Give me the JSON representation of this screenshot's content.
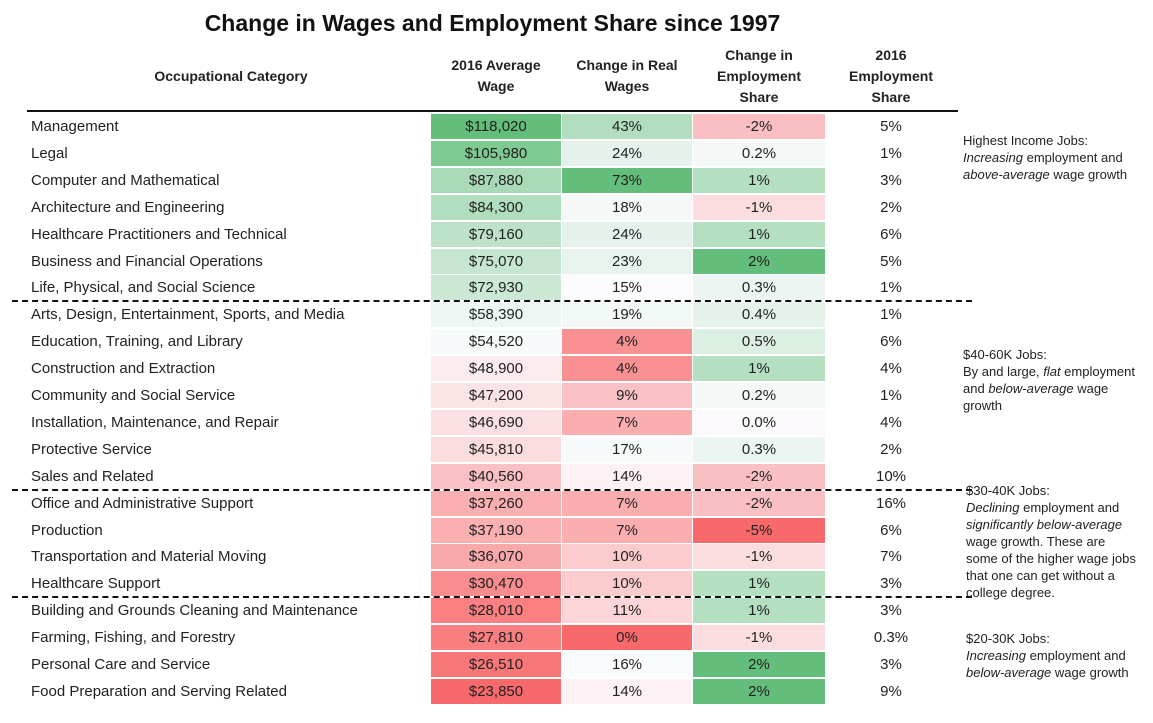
{
  "chart_data": {
    "type": "table",
    "title": "Change in Wages and Employment Share since 1997",
    "columns": {
      "category": "Occupational Category",
      "wage": "2016 Average\nWage",
      "real": "Change in Real\nWages",
      "emp": "Change in\nEmployment\nShare",
      "share": "2016\nEmployment\nShare"
    },
    "rows": [
      {
        "category": "Management",
        "wage": "$118,020",
        "wage_value": 118020,
        "real": "43%",
        "real_value": 43,
        "emp": "-2%",
        "emp_value": -2,
        "share": "5%"
      },
      {
        "category": "Legal",
        "wage": "$105,980",
        "wage_value": 105980,
        "real": "24%",
        "real_value": 24,
        "emp": "0.2%",
        "emp_value": 0.2,
        "share": "1%"
      },
      {
        "category": "Computer and Mathematical",
        "wage": "$87,880",
        "wage_value": 87880,
        "real": "73%",
        "real_value": 73,
        "emp": "1%",
        "emp_value": 1,
        "share": "3%"
      },
      {
        "category": "Architecture and Engineering",
        "wage": "$84,300",
        "wage_value": 84300,
        "real": "18%",
        "real_value": 18,
        "emp": "-1%",
        "emp_value": -1,
        "share": "2%"
      },
      {
        "category": "Healthcare Practitioners and Technical",
        "wage": "$79,160",
        "wage_value": 79160,
        "real": "24%",
        "real_value": 24,
        "emp": "1%",
        "emp_value": 1,
        "share": "6%"
      },
      {
        "category": "Business and Financial Operations",
        "wage": "$75,070",
        "wage_value": 75070,
        "real": "23%",
        "real_value": 23,
        "emp": "2%",
        "emp_value": 2,
        "share": "5%"
      },
      {
        "category": "Life, Physical, and Social Science",
        "wage": "$72,930",
        "wage_value": 72930,
        "real": "15%",
        "real_value": 15,
        "emp": "0.3%",
        "emp_value": 0.3,
        "share": "1%"
      },
      {
        "category": "Arts, Design, Entertainment, Sports, and Media",
        "wage": "$58,390",
        "wage_value": 58390,
        "real": "19%",
        "real_value": 19,
        "emp": "0.4%",
        "emp_value": 0.4,
        "share": "1%"
      },
      {
        "category": "Education, Training, and Library",
        "wage": "$54,520",
        "wage_value": 54520,
        "real": "4%",
        "real_value": 4,
        "emp": "0.5%",
        "emp_value": 0.5,
        "share": "6%"
      },
      {
        "category": "Construction and Extraction",
        "wage": "$48,900",
        "wage_value": 48900,
        "real": "4%",
        "real_value": 4,
        "emp": "1%",
        "emp_value": 1,
        "share": "4%"
      },
      {
        "category": "Community and Social Service",
        "wage": "$47,200",
        "wage_value": 47200,
        "real": "9%",
        "real_value": 9,
        "emp": "0.2%",
        "emp_value": 0.2,
        "share": "1%"
      },
      {
        "category": "Installation, Maintenance, and Repair",
        "wage": "$46,690",
        "wage_value": 46690,
        "real": "7%",
        "real_value": 7,
        "emp": "0.0%",
        "emp_value": 0.0,
        "share": "4%"
      },
      {
        "category": "Protective Service",
        "wage": "$45,810",
        "wage_value": 45810,
        "real": "17%",
        "real_value": 17,
        "emp": "0.3%",
        "emp_value": 0.3,
        "share": "2%"
      },
      {
        "category": "Sales and Related",
        "wage": "$40,560",
        "wage_value": 40560,
        "real": "14%",
        "real_value": 14,
        "emp": "-2%",
        "emp_value": -2,
        "share": "10%"
      },
      {
        "category": "Office and Administrative Support",
        "wage": "$37,260",
        "wage_value": 37260,
        "real": "7%",
        "real_value": 7,
        "emp": "-2%",
        "emp_value": -2,
        "share": "16%"
      },
      {
        "category": "Production",
        "wage": "$37,190",
        "wage_value": 37190,
        "real": "7%",
        "real_value": 7,
        "emp": "-5%",
        "emp_value": -5,
        "share": "6%"
      },
      {
        "category": "Transportation and Material Moving",
        "wage": "$36,070",
        "wage_value": 36070,
        "real": "10%",
        "real_value": 10,
        "emp": "-1%",
        "emp_value": -1,
        "share": "7%"
      },
      {
        "category": "Healthcare Support",
        "wage": "$30,470",
        "wage_value": 30470,
        "real": "10%",
        "real_value": 10,
        "emp": "1%",
        "emp_value": 1,
        "share": "3%"
      },
      {
        "category": "Building and Grounds Cleaning and Maintenance",
        "wage": "$28,010",
        "wage_value": 28010,
        "real": "11%",
        "real_value": 11,
        "emp": "1%",
        "emp_value": 1,
        "share": "3%"
      },
      {
        "category": "Farming, Fishing, and Forestry",
        "wage": "$27,810",
        "wage_value": 27810,
        "real": "0%",
        "real_value": 0,
        "emp": "-1%",
        "emp_value": -1,
        "share": "0.3%"
      },
      {
        "category": "Personal Care and Service",
        "wage": "$26,510",
        "wage_value": 26510,
        "real": "16%",
        "real_value": 16,
        "emp": "2%",
        "emp_value": 2,
        "share": "3%"
      },
      {
        "category": "Food Preparation and Serving Related",
        "wage": "$23,850",
        "wage_value": 23850,
        "real": "14%",
        "real_value": 14,
        "emp": "2%",
        "emp_value": 2,
        "share": "9%"
      }
    ],
    "group_breaks_after_row": [
      6,
      13,
      17
    ],
    "scales": {
      "wage": {
        "min": 23850,
        "mid": 52000,
        "max": 118020
      },
      "real": {
        "min": 0,
        "mid": 15,
        "max": 73
      },
      "emp": {
        "min": -5,
        "mid": 0.1,
        "max": 2
      }
    },
    "colors": {
      "high": "#63be7b",
      "mid": "#fcfcff",
      "low": "#f8696b"
    }
  },
  "notes": [
    {
      "parts": [
        {
          "t": "Highest Income Jobs:",
          "i": false,
          "br": true
        },
        {
          "t": "Increasing",
          "i": true
        },
        {
          "t": " employment and ",
          "i": false
        },
        {
          "t": "above-average",
          "i": true
        },
        {
          "t": " wage growth",
          "i": false
        }
      ]
    },
    {
      "parts": [
        {
          "t": "$40-60K Jobs:",
          "i": false,
          "br": true
        },
        {
          "t": "By and large, ",
          "i": false
        },
        {
          "t": "flat",
          "i": true
        },
        {
          "t": " employment and ",
          "i": false
        },
        {
          "t": "below-average",
          "i": true
        },
        {
          "t": " wage growth",
          "i": false
        }
      ]
    },
    {
      "parts": [
        {
          "t": "$30-40K Jobs:",
          "i": false,
          "br": true
        },
        {
          "t": "Declining",
          "i": true
        },
        {
          "t": " employment and ",
          "i": false
        },
        {
          "t": "significantly below-average",
          "i": true
        },
        {
          "t": " wage growth. These are some of the higher wage jobs that one can get without a college degree.",
          "i": false
        }
      ]
    },
    {
      "parts": [
        {
          "t": "$20-30K Jobs:",
          "i": false,
          "br": true
        },
        {
          "t": "Increasing",
          "i": true
        },
        {
          "t": " employment and ",
          "i": false
        },
        {
          "t": "below-average",
          "i": true
        },
        {
          "t": " wage growth",
          "i": false
        }
      ]
    }
  ]
}
